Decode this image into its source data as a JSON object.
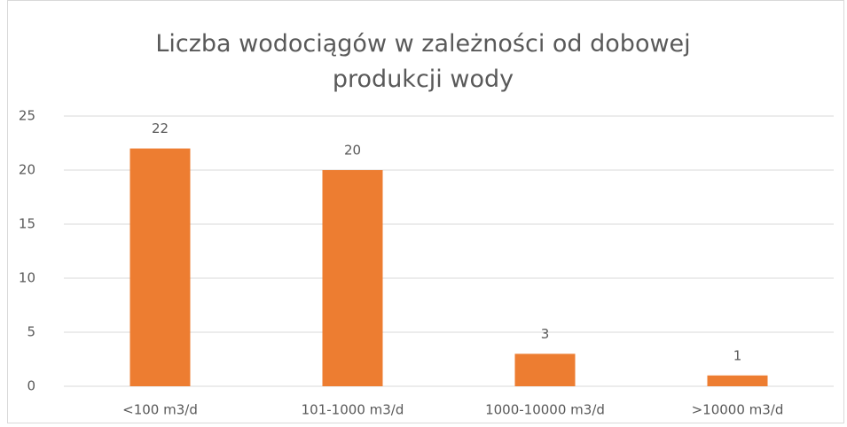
{
  "chart_data": {
    "type": "bar",
    "title": "Liczba wodociągów w zależności od dobowej produkcji wody",
    "categories": [
      "<100 m3/d",
      "101-1000 m3/d",
      "1000-10000 m3/d",
      ">10000 m3/d"
    ],
    "values": [
      22,
      20,
      3,
      1
    ],
    "color": "#ed7d31",
    "ylim": [
      0,
      25
    ],
    "yticks": [
      0,
      5,
      10,
      15,
      20,
      25
    ],
    "grid": true
  }
}
